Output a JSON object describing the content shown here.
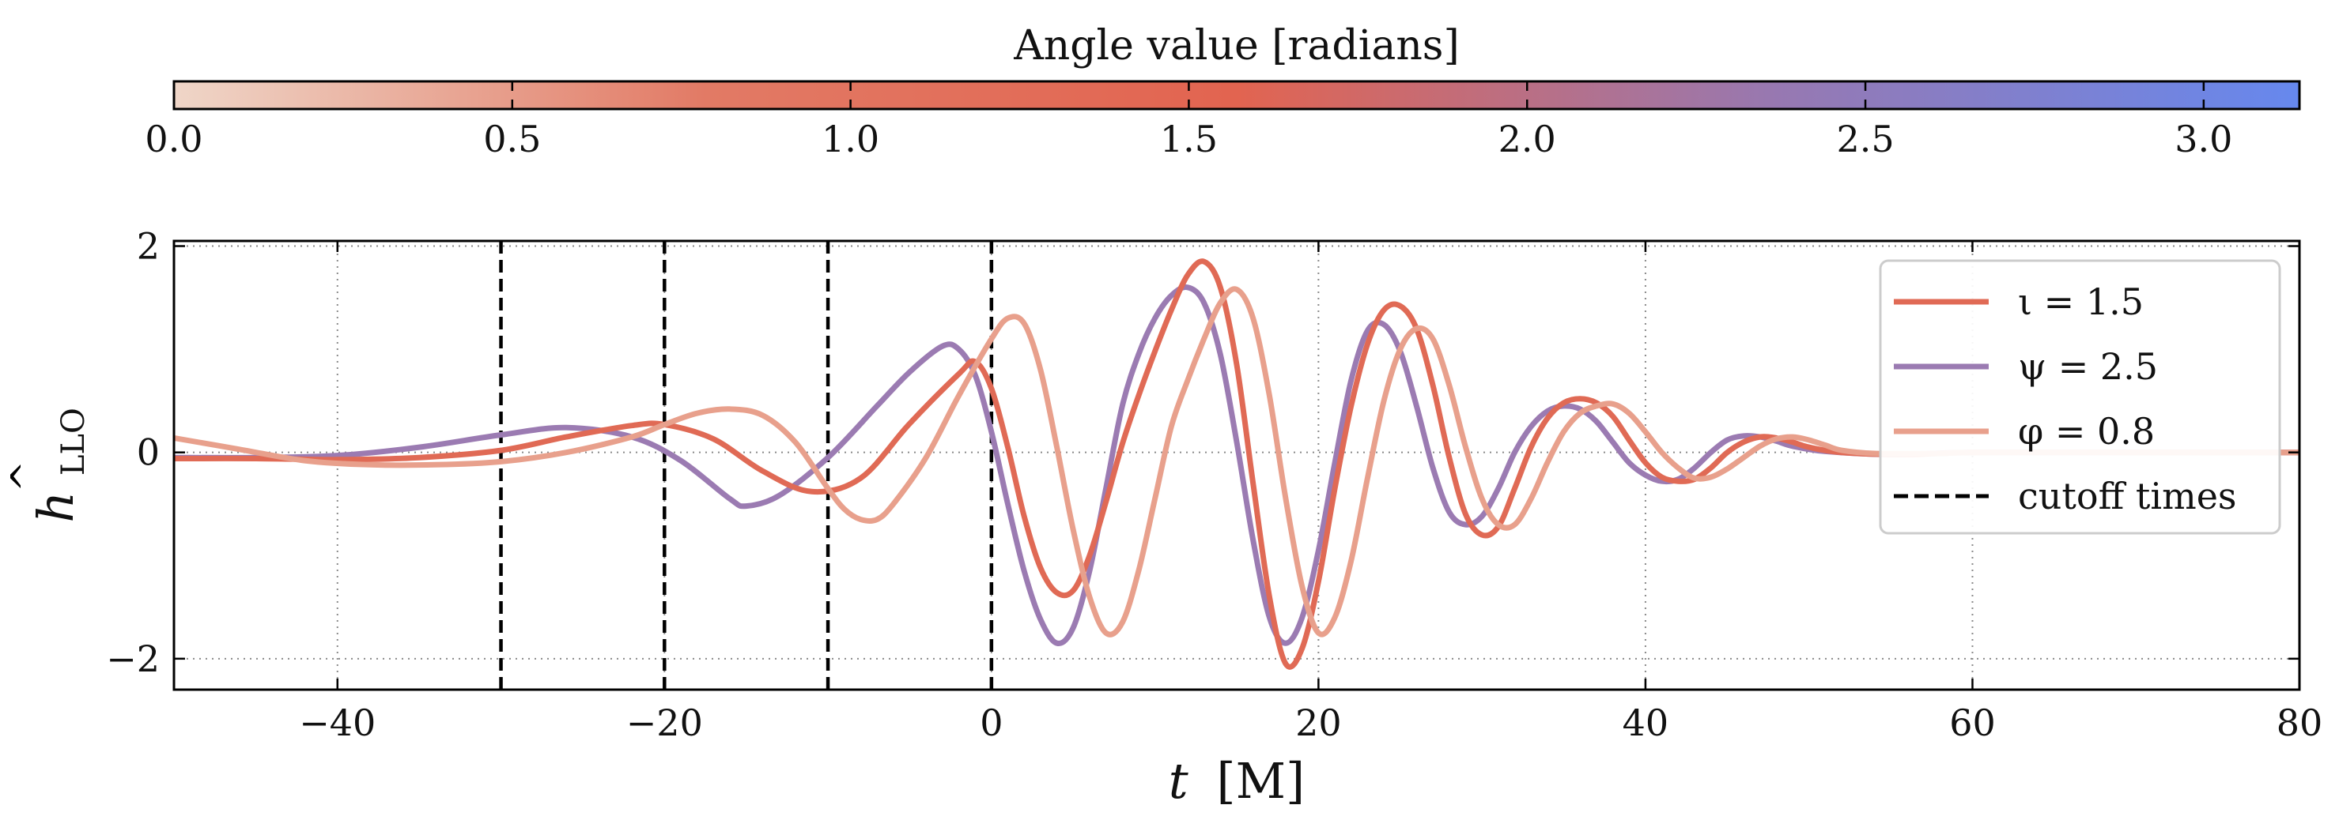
{
  "colorbar": {
    "label": "Angle value [radians]",
    "range": [
      0,
      3.14159
    ],
    "ticks": [
      0.0,
      0.5,
      1.0,
      1.5,
      2.0,
      2.5,
      3.0
    ],
    "tick_labels": [
      "0.0",
      "0.5",
      "1.0",
      "1.5",
      "2.0",
      "2.5",
      "3.0"
    ],
    "colors": [
      "#efd6c8",
      "#e27a65",
      "#e26450",
      "#9878b0",
      "#6688ee"
    ]
  },
  "chart_data": {
    "type": "line",
    "xlabel_symbol": "t",
    "xlabel_unit": "[M]",
    "ylabel_base": "h",
    "ylabel_subscript": "LLO",
    "xlim": [
      -50,
      80
    ],
    "ylim": [
      -2.3,
      2.05
    ],
    "xticks": [
      -40,
      -20,
      0,
      20,
      40,
      60,
      80
    ],
    "xtick_labels": [
      "−40",
      "−20",
      "0",
      "20",
      "40",
      "60",
      "80"
    ],
    "yticks": [
      -2,
      0,
      2
    ],
    "ytick_labels": [
      "−2",
      "0",
      "2"
    ],
    "grid": true,
    "legend_position": "top-right",
    "cutoff_times": [
      -30,
      -20,
      -10,
      0
    ],
    "series": [
      {
        "name": "ι = 1.5",
        "color": "#e06a55",
        "points": [
          [
            -50,
            -0.06
          ],
          [
            -45,
            -0.06
          ],
          [
            -40,
            -0.07
          ],
          [
            -35,
            -0.05
          ],
          [
            -30,
            0.02
          ],
          [
            -26,
            0.15
          ],
          [
            -22,
            0.26
          ],
          [
            -20,
            0.27
          ],
          [
            -17,
            0.13
          ],
          [
            -14,
            -0.18
          ],
          [
            -11,
            -0.38
          ],
          [
            -8,
            -0.25
          ],
          [
            -5,
            0.28
          ],
          [
            -2,
            0.76
          ],
          [
            -1,
            0.88
          ],
          [
            0,
            0.62
          ],
          [
            1,
            0.05
          ],
          [
            2,
            -0.62
          ],
          [
            3,
            -1.12
          ],
          [
            4,
            -1.36
          ],
          [
            5,
            -1.34
          ],
          [
            6,
            -1.0
          ],
          [
            7,
            -0.48
          ],
          [
            8,
            0.08
          ],
          [
            9,
            0.55
          ],
          [
            10,
            0.98
          ],
          [
            11,
            1.38
          ],
          [
            12,
            1.72
          ],
          [
            13,
            1.85
          ],
          [
            14,
            1.6
          ],
          [
            15,
            0.85
          ],
          [
            16,
            -0.3
          ],
          [
            17,
            -1.4
          ],
          [
            18,
            -2.05
          ],
          [
            19,
            -1.9
          ],
          [
            20,
            -1.25
          ],
          [
            21,
            -0.35
          ],
          [
            22,
            0.45
          ],
          [
            23,
            1.05
          ],
          [
            24,
            1.38
          ],
          [
            25,
            1.42
          ],
          [
            26,
            1.2
          ],
          [
            27,
            0.65
          ],
          [
            28,
            -0.05
          ],
          [
            29,
            -0.6
          ],
          [
            30,
            -0.8
          ],
          [
            31,
            -0.72
          ],
          [
            32,
            -0.35
          ],
          [
            33,
            0.05
          ],
          [
            34,
            0.33
          ],
          [
            35,
            0.48
          ],
          [
            36,
            0.52
          ],
          [
            37,
            0.48
          ],
          [
            38,
            0.35
          ],
          [
            39,
            0.12
          ],
          [
            40,
            -0.1
          ],
          [
            41,
            -0.24
          ],
          [
            42,
            -0.28
          ],
          [
            43,
            -0.26
          ],
          [
            44,
            -0.15
          ],
          [
            45,
            0.0
          ],
          [
            46,
            0.1
          ],
          [
            47,
            0.15
          ],
          [
            48,
            0.14
          ],
          [
            49,
            0.1
          ],
          [
            50,
            0.05
          ],
          [
            52,
            0.0
          ],
          [
            56,
            -0.02
          ],
          [
            60,
            0.0
          ],
          [
            70,
            0.0
          ],
          [
            80,
            0.0
          ]
        ]
      },
      {
        "name": "ψ = 2.5",
        "color": "#9b7bb2",
        "points": [
          [
            -50,
            -0.05
          ],
          [
            -45,
            -0.05
          ],
          [
            -40,
            -0.03
          ],
          [
            -35,
            0.05
          ],
          [
            -30,
            0.17
          ],
          [
            -26,
            0.24
          ],
          [
            -22,
            0.15
          ],
          [
            -19,
            -0.08
          ],
          [
            -16,
            -0.45
          ],
          [
            -15,
            -0.52
          ],
          [
            -13,
            -0.42
          ],
          [
            -10,
            -0.05
          ],
          [
            -7,
            0.45
          ],
          [
            -5,
            0.78
          ],
          [
            -3,
            1.03
          ],
          [
            -2,
            1.0
          ],
          [
            -1,
            0.75
          ],
          [
            0,
            0.2
          ],
          [
            1,
            -0.5
          ],
          [
            2,
            -1.15
          ],
          [
            3,
            -1.62
          ],
          [
            4,
            -1.85
          ],
          [
            5,
            -1.7
          ],
          [
            6,
            -1.15
          ],
          [
            7,
            -0.35
          ],
          [
            8,
            0.45
          ],
          [
            9,
            0.95
          ],
          [
            10,
            1.3
          ],
          [
            11,
            1.52
          ],
          [
            12,
            1.6
          ],
          [
            13,
            1.45
          ],
          [
            14,
            0.95
          ],
          [
            15,
            0.1
          ],
          [
            16,
            -0.85
          ],
          [
            17,
            -1.6
          ],
          [
            18,
            -1.85
          ],
          [
            19,
            -1.6
          ],
          [
            20,
            -0.95
          ],
          [
            21,
            -0.1
          ],
          [
            22,
            0.7
          ],
          [
            23,
            1.18
          ],
          [
            24,
            1.24
          ],
          [
            25,
            0.98
          ],
          [
            26,
            0.45
          ],
          [
            27,
            -0.15
          ],
          [
            28,
            -0.58
          ],
          [
            29,
            -0.7
          ],
          [
            30,
            -0.62
          ],
          [
            31,
            -0.35
          ],
          [
            32,
            0.0
          ],
          [
            33,
            0.25
          ],
          [
            34,
            0.4
          ],
          [
            35,
            0.45
          ],
          [
            36,
            0.42
          ],
          [
            37,
            0.3
          ],
          [
            38,
            0.1
          ],
          [
            39,
            -0.1
          ],
          [
            40,
            -0.22
          ],
          [
            41,
            -0.28
          ],
          [
            42,
            -0.26
          ],
          [
            43,
            -0.15
          ],
          [
            44,
            0.0
          ],
          [
            45,
            0.12
          ],
          [
            46,
            0.16
          ],
          [
            47,
            0.15
          ],
          [
            48,
            0.11
          ],
          [
            49,
            0.06
          ],
          [
            51,
            0.01
          ],
          [
            55,
            -0.02
          ],
          [
            60,
            0.0
          ],
          [
            70,
            0.0
          ],
          [
            80,
            0.0
          ]
        ]
      },
      {
        "name": "φ = 0.8",
        "color": "#e8a08c",
        "points": [
          [
            -50,
            0.14
          ],
          [
            -46,
            0.03
          ],
          [
            -42,
            -0.08
          ],
          [
            -38,
            -0.12
          ],
          [
            -34,
            -0.12
          ],
          [
            -30,
            -0.09
          ],
          [
            -26,
            0.0
          ],
          [
            -22,
            0.15
          ],
          [
            -20,
            0.27
          ],
          [
            -18,
            0.38
          ],
          [
            -16,
            0.42
          ],
          [
            -14,
            0.36
          ],
          [
            -12,
            0.1
          ],
          [
            -10,
            -0.35
          ],
          [
            -9,
            -0.55
          ],
          [
            -8,
            -0.65
          ],
          [
            -7,
            -0.65
          ],
          [
            -6,
            -0.5
          ],
          [
            -4,
            -0.05
          ],
          [
            -2,
            0.55
          ],
          [
            0,
            1.1
          ],
          [
            1,
            1.3
          ],
          [
            2,
            1.25
          ],
          [
            3,
            0.8
          ],
          [
            4,
            0.05
          ],
          [
            5,
            -0.75
          ],
          [
            6,
            -1.4
          ],
          [
            7,
            -1.75
          ],
          [
            8,
            -1.65
          ],
          [
            9,
            -1.15
          ],
          [
            10,
            -0.45
          ],
          [
            11,
            0.25
          ],
          [
            12,
            0.7
          ],
          [
            13,
            1.1
          ],
          [
            14,
            1.45
          ],
          [
            15,
            1.58
          ],
          [
            16,
            1.3
          ],
          [
            17,
            0.55
          ],
          [
            18,
            -0.45
          ],
          [
            19,
            -1.3
          ],
          [
            20,
            -1.75
          ],
          [
            21,
            -1.6
          ],
          [
            22,
            -1.05
          ],
          [
            23,
            -0.25
          ],
          [
            24,
            0.5
          ],
          [
            25,
            1.0
          ],
          [
            26,
            1.2
          ],
          [
            27,
            1.1
          ],
          [
            28,
            0.65
          ],
          [
            29,
            0.05
          ],
          [
            30,
            -0.45
          ],
          [
            31,
            -0.7
          ],
          [
            32,
            -0.7
          ],
          [
            33,
            -0.45
          ],
          [
            34,
            -0.1
          ],
          [
            35,
            0.2
          ],
          [
            36,
            0.38
          ],
          [
            37,
            0.45
          ],
          [
            38,
            0.47
          ],
          [
            39,
            0.38
          ],
          [
            40,
            0.2
          ],
          [
            41,
            0.0
          ],
          [
            42,
            -0.15
          ],
          [
            43,
            -0.25
          ],
          [
            44,
            -0.24
          ],
          [
            45,
            -0.16
          ],
          [
            46,
            -0.05
          ],
          [
            47,
            0.06
          ],
          [
            48,
            0.13
          ],
          [
            49,
            0.15
          ],
          [
            50,
            0.12
          ],
          [
            51,
            0.07
          ],
          [
            52,
            0.02
          ],
          [
            54,
            -0.01
          ],
          [
            58,
            -0.01
          ],
          [
            60,
            0.0
          ],
          [
            70,
            0.0
          ],
          [
            80,
            0.0
          ]
        ]
      }
    ],
    "legend": [
      {
        "label": "ι = 1.5",
        "color": "#e06a55",
        "style": "solid"
      },
      {
        "label": "ψ = 2.5",
        "color": "#9b7bb2",
        "style": "solid"
      },
      {
        "label": "φ = 0.8",
        "color": "#e8a08c",
        "style": "solid"
      },
      {
        "label": "cutoff times",
        "color": "#000000",
        "style": "dashed"
      }
    ]
  }
}
